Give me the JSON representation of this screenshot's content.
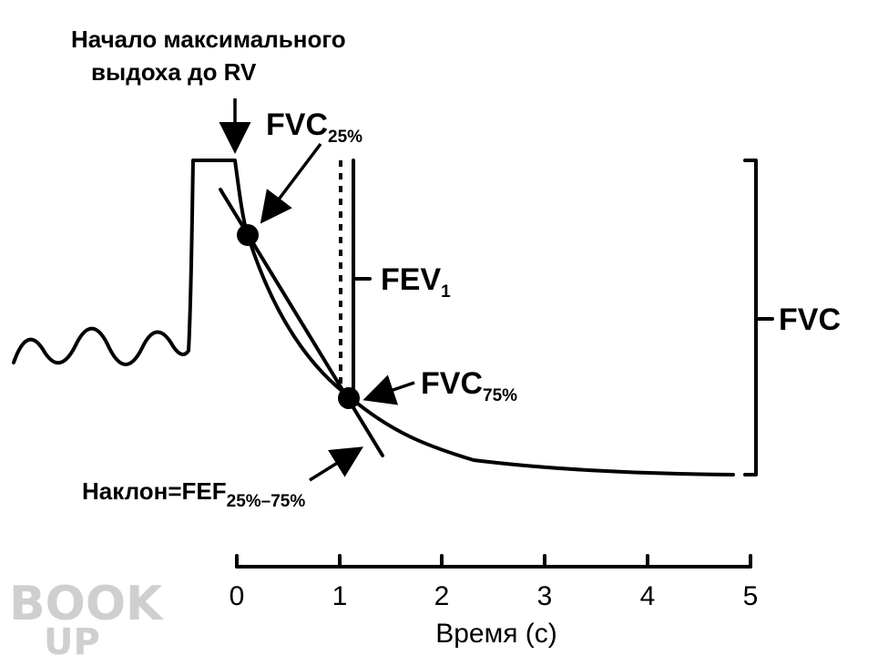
{
  "annotations": {
    "start_line1": "Начало максимального",
    "start_line2": "выдоха  до RV",
    "fvc25_main": "FVC",
    "fvc25_sub": "25%",
    "fev1_main": "FEV",
    "fev1_sub": "1",
    "fvc": "FVC",
    "fvc75_main": "FVC",
    "fvc75_sub": "75%",
    "slope_main": "Наклон=FEF",
    "slope_sub": "25%–75%"
  },
  "axis": {
    "label": "Время (c)",
    "ticks": [
      "0",
      "1",
      "2",
      "3",
      "4",
      "5"
    ]
  },
  "watermark": {
    "line1": "BOOK",
    "line2": "UP"
  }
}
